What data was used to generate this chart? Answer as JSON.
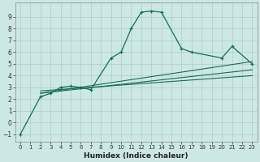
{
  "xlabel": "Humidex (Indice chaleur)",
  "background_color": "#cce8e4",
  "grid_color": "#b0ccc8",
  "line_color": "#1a6b5a",
  "xlim": [
    -0.5,
    23.5
  ],
  "ylim": [
    -1.6,
    10.2
  ],
  "yticks": [
    -1,
    0,
    1,
    2,
    3,
    4,
    5,
    6,
    7,
    8,
    9
  ],
  "xticks": [
    0,
    1,
    2,
    3,
    4,
    5,
    6,
    7,
    8,
    9,
    10,
    11,
    12,
    13,
    14,
    15,
    16,
    17,
    18,
    19,
    20,
    21,
    22,
    23
  ],
  "main_curve": {
    "x": [
      0,
      2,
      3,
      4,
      5,
      6,
      7,
      9,
      10,
      11,
      12,
      13,
      14,
      16,
      17,
      20,
      21,
      23
    ],
    "y": [
      -1.0,
      2.2,
      2.5,
      3.0,
      3.1,
      3.0,
      2.8,
      5.5,
      6.0,
      8.0,
      9.4,
      9.5,
      9.4,
      6.3,
      6.0,
      5.5,
      6.5,
      5.0
    ]
  },
  "linear_lines": [
    {
      "x": [
        2,
        23
      ],
      "y": [
        2.5,
        4.5
      ]
    },
    {
      "x": [
        2,
        23
      ],
      "y": [
        2.5,
        5.2
      ]
    },
    {
      "x": [
        2,
        23
      ],
      "y": [
        2.7,
        4.0
      ]
    }
  ]
}
